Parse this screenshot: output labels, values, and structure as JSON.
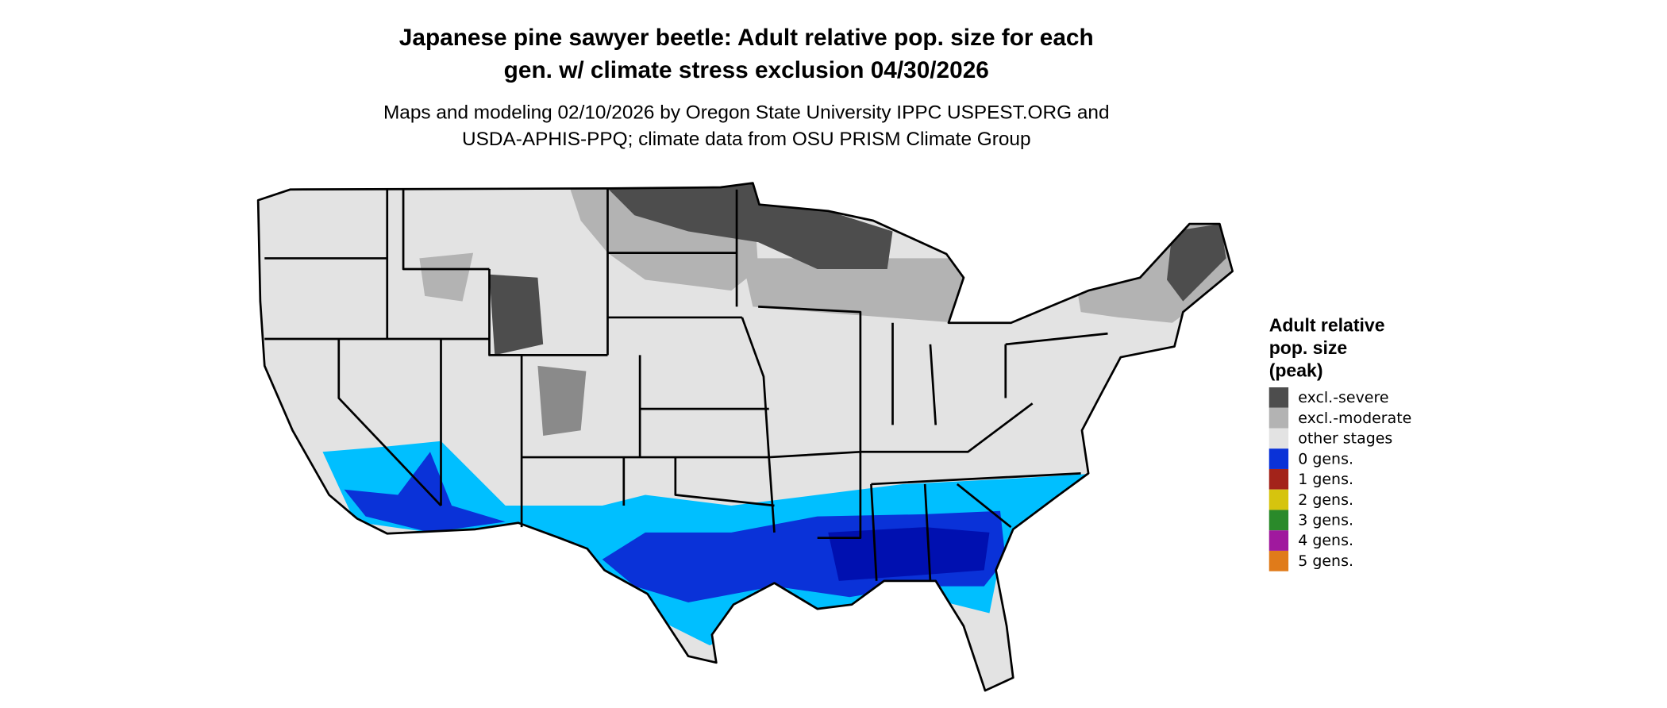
{
  "title": [
    "Japanese pine sawyer beetle: Adult relative pop. size for each",
    "gen. w/ climate stress exclusion 04/30/2026"
  ],
  "subtitle": [
    "Maps and modeling 02/10/2026 by Oregon State University IPPC USPEST.ORG and",
    "USDA-APHIS-PPQ; climate data from OSU PRISM Climate Group"
  ],
  "legend": {
    "title": [
      "Adult relative",
      "pop. size",
      "(peak)"
    ],
    "items": [
      {
        "label": "excl.-severe",
        "color": "#4d4d4d"
      },
      {
        "label": "excl.-moderate",
        "color": "#b3b3b3"
      },
      {
        "label": "other stages",
        "color": "#e3e3e3"
      },
      {
        "label": "0 gens.",
        "color": "#0a32d8"
      },
      {
        "label": "1 gens.",
        "color": "#a3231a"
      },
      {
        "label": "2 gens.",
        "color": "#d6c40e"
      },
      {
        "label": "3 gens.",
        "color": "#2a8a2a"
      },
      {
        "label": "4 gens.",
        "color": "#a0199e"
      },
      {
        "label": "5 gens.",
        "color": "#e07b1a"
      }
    ]
  }
}
